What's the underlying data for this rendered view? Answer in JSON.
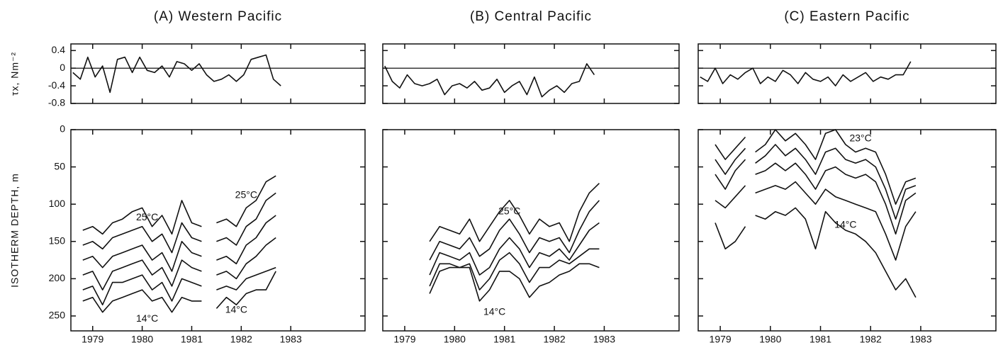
{
  "chart_data": [
    {
      "type": "line",
      "title": "(A)  Western Pacific",
      "ylabel": "τx, Nm⁻²",
      "xlim": [
        1978.56,
        1984.5
      ],
      "xticks": [
        1979,
        1980,
        1981,
        1982,
        1983
      ],
      "ylim": [
        -0.8,
        0.55
      ],
      "yticks": [
        0.4,
        0,
        -0.4,
        -0.8
      ],
      "reference_line": 0,
      "x": [
        1978.6,
        1978.75,
        1978.9,
        1979.05,
        1979.2,
        1979.35,
        1979.5,
        1979.65,
        1979.8,
        1979.95,
        1980.1,
        1980.25,
        1980.4,
        1980.55,
        1980.7,
        1980.85,
        1981.0,
        1981.15,
        1981.3,
        1981.45,
        1981.6,
        1981.75,
        1981.9,
        1982.05,
        1982.2,
        1982.35,
        1982.5,
        1982.65,
        1982.8
      ],
      "series": [
        {
          "color": "#111111",
          "values": [
            -0.1,
            -0.25,
            0.25,
            -0.2,
            0.05,
            -0.55,
            0.2,
            0.25,
            -0.1,
            0.25,
            -0.05,
            -0.1,
            0.05,
            -0.2,
            0.15,
            0.1,
            -0.05,
            0.1,
            -0.15,
            -0.3,
            -0.25,
            -0.15,
            -0.3,
            -0.15,
            0.2,
            0.25,
            0.3,
            -0.25,
            -0.4
          ]
        }
      ]
    },
    {
      "type": "line",
      "title": "(B)  Central Pacific",
      "xlim": [
        1978.56,
        1984.5
      ],
      "xticks": [
        1979,
        1980,
        1981,
        1982,
        1983
      ],
      "ylim": [
        -0.8,
        0.55
      ],
      "yticks": [
        0.4,
        0,
        -0.4,
        -0.8
      ],
      "reference_line": 0,
      "x": [
        1978.6,
        1978.75,
        1978.9,
        1979.05,
        1979.2,
        1979.35,
        1979.5,
        1979.65,
        1979.8,
        1979.95,
        1980.1,
        1980.25,
        1980.4,
        1980.55,
        1980.7,
        1980.85,
        1981.0,
        1981.15,
        1981.3,
        1981.45,
        1981.6,
        1981.75,
        1981.9,
        1982.05,
        1982.2,
        1982.35,
        1982.5,
        1982.65,
        1982.8
      ],
      "series": [
        {
          "color": "#111111",
          "values": [
            0.05,
            -0.3,
            -0.45,
            -0.15,
            -0.35,
            -0.4,
            -0.35,
            -0.25,
            -0.6,
            -0.4,
            -0.35,
            -0.45,
            -0.3,
            -0.5,
            -0.45,
            -0.25,
            -0.55,
            -0.4,
            -0.3,
            -0.6,
            -0.2,
            -0.65,
            -0.5,
            -0.4,
            -0.55,
            -0.35,
            -0.3,
            0.1,
            -0.15
          ]
        }
      ]
    },
    {
      "type": "line",
      "title": "(C)  Eastern Pacific",
      "xlim": [
        1978.56,
        1984.5
      ],
      "xticks": [
        1979,
        1980,
        1981,
        1982,
        1983
      ],
      "ylim": [
        -0.8,
        0.55
      ],
      "yticks": [
        0.4,
        0,
        -0.4,
        -0.8
      ],
      "reference_line": 0,
      "x": [
        1978.6,
        1978.75,
        1978.9,
        1979.05,
        1979.2,
        1979.35,
        1979.5,
        1979.65,
        1979.8,
        1979.95,
        1980.1,
        1980.25,
        1980.4,
        1980.55,
        1980.7,
        1980.85,
        1981.0,
        1981.15,
        1981.3,
        1981.45,
        1981.6,
        1981.75,
        1981.9,
        1982.05,
        1982.2,
        1982.35,
        1982.5,
        1982.65,
        1982.8
      ],
      "series": [
        {
          "color": "#111111",
          "values": [
            -0.2,
            -0.3,
            0,
            -0.35,
            -0.15,
            -0.25,
            -0.1,
            0,
            -0.35,
            -0.2,
            -0.3,
            -0.05,
            -0.15,
            -0.35,
            -0.1,
            -0.25,
            -0.3,
            -0.2,
            -0.4,
            -0.15,
            -0.3,
            -0.2,
            -0.1,
            -0.3,
            -0.2,
            -0.25,
            -0.15,
            -0.15,
            0.15
          ]
        }
      ]
    },
    {
      "type": "line",
      "ylabel": "ISOTHERM DEPTH, m",
      "xlim": [
        1978.56,
        1984.5
      ],
      "xticks": [
        1979,
        1980,
        1981,
        1982,
        1983
      ],
      "ylim": [
        270,
        0
      ],
      "yticks": [
        0,
        50,
        100,
        150,
        200,
        250
      ],
      "annotations": [
        "25°C",
        "14°C",
        "25°C",
        "14°C"
      ],
      "x": [
        1978.8,
        1979.0,
        1979.2,
        1979.4,
        1979.6,
        1979.8,
        1980.0,
        1980.2,
        1980.4,
        1980.6,
        1980.8,
        1981.0,
        1981.2,
        1981.35,
        1981.5,
        1981.7,
        1981.9,
        1982.1,
        1982.3,
        1982.5,
        1982.7
      ],
      "series": [
        {
          "color": "#111111",
          "values": [
            135,
            130,
            140,
            125,
            120,
            110,
            105,
            130,
            115,
            140,
            95,
            125,
            130,
            null,
            125,
            120,
            130,
            105,
            95,
            70,
            62
          ]
        },
        {
          "color": "#111111",
          "values": [
            155,
            150,
            160,
            145,
            140,
            135,
            130,
            150,
            140,
            165,
            125,
            145,
            150,
            null,
            150,
            145,
            155,
            130,
            120,
            95,
            85
          ]
        },
        {
          "color": "#111111",
          "values": [
            175,
            170,
            185,
            170,
            165,
            160,
            155,
            175,
            165,
            190,
            150,
            165,
            170,
            null,
            175,
            170,
            180,
            155,
            145,
            125,
            115
          ]
        },
        {
          "color": "#111111",
          "values": [
            195,
            190,
            215,
            190,
            185,
            180,
            175,
            195,
            185,
            210,
            175,
            185,
            190,
            null,
            195,
            190,
            200,
            180,
            170,
            155,
            145
          ]
        },
        {
          "color": "#111111",
          "values": [
            215,
            210,
            235,
            205,
            205,
            200,
            195,
            215,
            205,
            230,
            200,
            205,
            210,
            null,
            215,
            210,
            215,
            200,
            195,
            190,
            185
          ]
        },
        {
          "color": "#111111",
          "values": [
            230,
            225,
            245,
            230,
            225,
            220,
            215,
            230,
            225,
            245,
            225,
            230,
            230,
            null,
            240,
            225,
            235,
            220,
            215,
            215,
            190
          ]
        }
      ]
    },
    {
      "type": "line",
      "xlim": [
        1978.56,
        1984.5
      ],
      "xticks": [
        1979,
        1980,
        1981,
        1982,
        1983
      ],
      "ylim": [
        270,
        0
      ],
      "yticks": [
        0,
        50,
        100,
        150,
        200,
        250
      ],
      "annotations": [
        "25°C",
        "14°C"
      ],
      "x": [
        1979.2,
        1979.35,
        1979.5,
        1979.7,
        1979.9,
        1980.1,
        1980.3,
        1980.5,
        1980.7,
        1980.9,
        1981.1,
        1981.3,
        1981.5,
        1981.7,
        1981.9,
        1982.1,
        1982.3,
        1982.5,
        1982.7,
        1982.9
      ],
      "series": [
        {
          "color": "#111111",
          "values": [
            110,
            null,
            150,
            130,
            135,
            140,
            120,
            150,
            130,
            110,
            95,
            115,
            140,
            120,
            130,
            125,
            150,
            110,
            85,
            72
          ]
        },
        {
          "color": "#111111",
          "values": [
            130,
            null,
            175,
            150,
            155,
            160,
            145,
            170,
            160,
            135,
            120,
            140,
            165,
            145,
            150,
            145,
            165,
            135,
            110,
            95
          ]
        },
        {
          "color": "#111111",
          "values": [
            150,
            null,
            195,
            165,
            170,
            175,
            165,
            195,
            185,
            160,
            145,
            160,
            185,
            165,
            170,
            160,
            175,
            155,
            135,
            125
          ]
        },
        {
          "color": "#111111",
          "values": [
            170,
            null,
            210,
            180,
            180,
            185,
            180,
            215,
            200,
            175,
            165,
            180,
            205,
            185,
            185,
            175,
            180,
            170,
            160,
            160
          ]
        },
        {
          "color": "#111111",
          "values": [
            195,
            null,
            220,
            190,
            185,
            185,
            185,
            230,
            215,
            190,
            190,
            200,
            225,
            210,
            205,
            195,
            190,
            180,
            180,
            185
          ]
        }
      ]
    },
    {
      "type": "line",
      "xlim": [
        1978.56,
        1984.5
      ],
      "xticks": [
        1979,
        1980,
        1981,
        1982,
        1983
      ],
      "ylim": [
        270,
        0
      ],
      "yticks": [
        0,
        50,
        100,
        150,
        200,
        250
      ],
      "annotations": [
        "23°C",
        "14°C"
      ],
      "x": [
        1978.9,
        1979.1,
        1979.3,
        1979.5,
        1979.6,
        1979.7,
        1979.9,
        1980.1,
        1980.3,
        1980.5,
        1980.7,
        1980.9,
        1981.1,
        1981.3,
        1981.5,
        1981.7,
        1981.9,
        1982.1,
        1982.3,
        1982.5,
        1982.7,
        1982.9
      ],
      "series": [
        {
          "color": "#111111",
          "values": [
            20,
            40,
            25,
            10,
            null,
            30,
            20,
            0,
            15,
            5,
            20,
            40,
            5,
            0,
            20,
            30,
            25,
            30,
            60,
            100,
            70,
            65
          ]
        },
        {
          "color": "#111111",
          "values": [
            40,
            60,
            40,
            25,
            null,
            45,
            35,
            20,
            35,
            25,
            40,
            60,
            30,
            25,
            40,
            45,
            40,
            50,
            80,
            120,
            80,
            75
          ]
        },
        {
          "color": "#111111",
          "values": [
            60,
            80,
            55,
            40,
            null,
            60,
            55,
            45,
            55,
            45,
            60,
            80,
            55,
            50,
            60,
            65,
            60,
            70,
            100,
            140,
            95,
            85
          ]
        },
        {
          "color": "#111111",
          "values": [
            95,
            105,
            90,
            75,
            null,
            85,
            80,
            75,
            80,
            70,
            85,
            100,
            80,
            90,
            95,
            100,
            105,
            110,
            140,
            175,
            130,
            110
          ]
        },
        {
          "color": "#111111",
          "values": [
            125,
            160,
            150,
            130,
            null,
            115,
            120,
            110,
            115,
            105,
            120,
            160,
            110,
            125,
            135,
            140,
            150,
            165,
            190,
            215,
            200,
            225
          ]
        }
      ]
    }
  ]
}
